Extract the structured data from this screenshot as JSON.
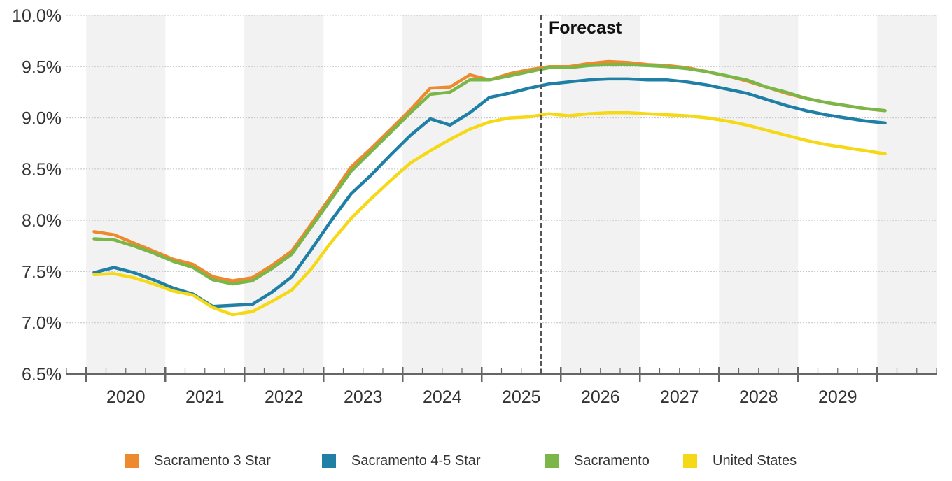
{
  "chart_data": {
    "type": "line",
    "annotation": "Forecast",
    "forecast_start": 2025.25,
    "x_tick_labels": [
      "2020",
      "2021",
      "2022",
      "2023",
      "2024",
      "2025",
      "2026",
      "2027",
      "2028",
      "2029"
    ],
    "y_tick_labels": [
      "6.5%",
      "7.0%",
      "7.5%",
      "8.0%",
      "8.5%",
      "9.0%",
      "9.5%",
      "10.0%"
    ],
    "ylim": [
      6.5,
      10.0
    ],
    "xlim": [
      2019.25,
      2030.25
    ],
    "grid": true,
    "legend_position": "bottom",
    "x": [
      2019.6,
      2019.85,
      2020.1,
      2020.35,
      2020.6,
      2020.85,
      2021.1,
      2021.35,
      2021.6,
      2021.85,
      2022.1,
      2022.35,
      2022.6,
      2022.85,
      2023.1,
      2023.35,
      2023.6,
      2023.85,
      2024.1,
      2024.35,
      2024.6,
      2024.85,
      2025.1,
      2025.35,
      2025.6,
      2025.85,
      2026.1,
      2026.35,
      2026.6,
      2026.85,
      2027.1,
      2027.35,
      2027.6,
      2027.85,
      2028.1,
      2028.35,
      2028.6,
      2028.85,
      2029.1,
      2029.35,
      2029.6
    ],
    "series": [
      {
        "name": "Sacramento 3 Star",
        "color": "#ee8a2e",
        "values": [
          7.89,
          7.86,
          7.78,
          7.7,
          7.62,
          7.57,
          7.45,
          7.41,
          7.44,
          7.56,
          7.7,
          7.97,
          8.24,
          8.52,
          8.7,
          8.89,
          9.08,
          9.29,
          9.3,
          9.42,
          9.37,
          9.43,
          9.47,
          9.5,
          9.5,
          9.53,
          9.55,
          9.54,
          9.52,
          9.51,
          9.49,
          9.45,
          9.41,
          9.36,
          9.3,
          9.24,
          9.19,
          9.15,
          9.12,
          9.09,
          9.07
        ]
      },
      {
        "name": "Sacramento 4-5 Star",
        "color": "#1f7fa5",
        "values": [
          7.49,
          7.54,
          7.49,
          7.42,
          7.34,
          7.28,
          7.16,
          7.17,
          7.18,
          7.3,
          7.45,
          7.72,
          8.0,
          8.26,
          8.44,
          8.64,
          8.83,
          8.99,
          8.93,
          9.05,
          9.2,
          9.24,
          9.29,
          9.33,
          9.35,
          9.37,
          9.38,
          9.38,
          9.37,
          9.37,
          9.35,
          9.32,
          9.28,
          9.24,
          9.18,
          9.12,
          9.07,
          9.03,
          9.0,
          8.97,
          8.95
        ]
      },
      {
        "name": "Sacramento",
        "color": "#7ab648",
        "values": [
          7.82,
          7.81,
          7.75,
          7.68,
          7.6,
          7.54,
          7.42,
          7.38,
          7.41,
          7.53,
          7.67,
          7.94,
          8.21,
          8.48,
          8.67,
          8.86,
          9.05,
          9.23,
          9.25,
          9.37,
          9.37,
          9.41,
          9.45,
          9.49,
          9.49,
          9.51,
          9.52,
          9.52,
          9.51,
          9.5,
          9.48,
          9.45,
          9.41,
          9.37,
          9.3,
          9.25,
          9.19,
          9.15,
          9.12,
          9.09,
          9.07
        ]
      },
      {
        "name": "United States",
        "color": "#f5d916",
        "values": [
          7.47,
          7.48,
          7.44,
          7.38,
          7.31,
          7.27,
          7.15,
          7.08,
          7.11,
          7.21,
          7.32,
          7.53,
          7.79,
          8.02,
          8.21,
          8.39,
          8.56,
          8.68,
          8.79,
          8.89,
          8.96,
          9.0,
          9.01,
          9.04,
          9.02,
          9.04,
          9.05,
          9.05,
          9.04,
          9.03,
          9.02,
          9.0,
          8.97,
          8.93,
          8.88,
          8.83,
          8.78,
          8.74,
          8.71,
          8.68,
          8.65
        ]
      }
    ]
  }
}
